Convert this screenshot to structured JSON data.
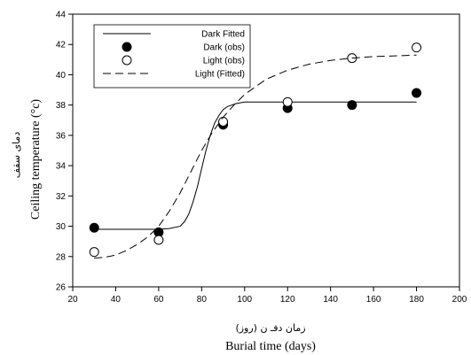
{
  "chart_data": {
    "type": "scatter",
    "xlabel": "Burial time (days)",
    "xlabel_fa": "زمان دفـ ن (روز)",
    "ylabel": "Ceiling temperature (°c)",
    "ylabel_fa": "دمای سقف",
    "xlim": [
      20,
      200
    ],
    "ylim": [
      26,
      44
    ],
    "x_ticks": [
      20,
      40,
      60,
      80,
      100,
      120,
      140,
      160,
      180,
      200
    ],
    "y_ticks": [
      26,
      28,
      30,
      32,
      34,
      36,
      38,
      40,
      42,
      44
    ],
    "grid": false,
    "legend_position": "top-left",
    "series": [
      {
        "name": "Dark Fitted",
        "kind": "line",
        "style": "solid",
        "color": "#000000",
        "x": [
          30,
          40,
          50,
          55,
          60,
          65,
          70,
          72,
          74,
          76,
          78,
          80,
          82,
          84,
          86,
          88,
          90,
          92,
          94,
          96,
          98,
          100,
          105,
          110,
          120,
          140,
          160,
          180
        ],
        "y": [
          29.8,
          29.8,
          29.8,
          29.8,
          29.8,
          29.85,
          30.0,
          30.3,
          30.8,
          31.6,
          32.6,
          33.8,
          35.0,
          36.0,
          36.8,
          37.3,
          37.7,
          37.9,
          38.0,
          38.1,
          38.15,
          38.2,
          38.2,
          38.2,
          38.2,
          38.2,
          38.2,
          38.2
        ]
      },
      {
        "name": "Dark (obs)",
        "kind": "points",
        "marker": "filled-circle",
        "color": "#000000",
        "x": [
          30,
          60,
          90,
          120,
          150,
          180
        ],
        "y": [
          29.9,
          29.6,
          36.7,
          37.8,
          38.0,
          38.8
        ]
      },
      {
        "name": "Light (obs)",
        "kind": "points",
        "marker": "open-circle",
        "color": "#000000",
        "x": [
          30,
          60,
          90,
          120,
          150,
          180
        ],
        "y": [
          28.3,
          29.1,
          36.9,
          38.2,
          41.1,
          41.8
        ]
      },
      {
        "name": "Light (Fitted)",
        "kind": "line",
        "style": "dashed",
        "color": "#000000",
        "x": [
          30,
          35,
          40,
          45,
          50,
          55,
          60,
          65,
          70,
          75,
          80,
          85,
          90,
          95,
          100,
          105,
          110,
          115,
          120,
          125,
          130,
          140,
          150,
          160,
          170,
          180
        ],
        "y": [
          27.9,
          27.95,
          28.1,
          28.4,
          28.8,
          29.3,
          30.0,
          31.0,
          32.2,
          33.6,
          35.0,
          36.2,
          37.2,
          38.0,
          38.7,
          39.2,
          39.7,
          40.0,
          40.3,
          40.5,
          40.7,
          40.95,
          41.1,
          41.2,
          41.25,
          41.3
        ]
      }
    ]
  }
}
